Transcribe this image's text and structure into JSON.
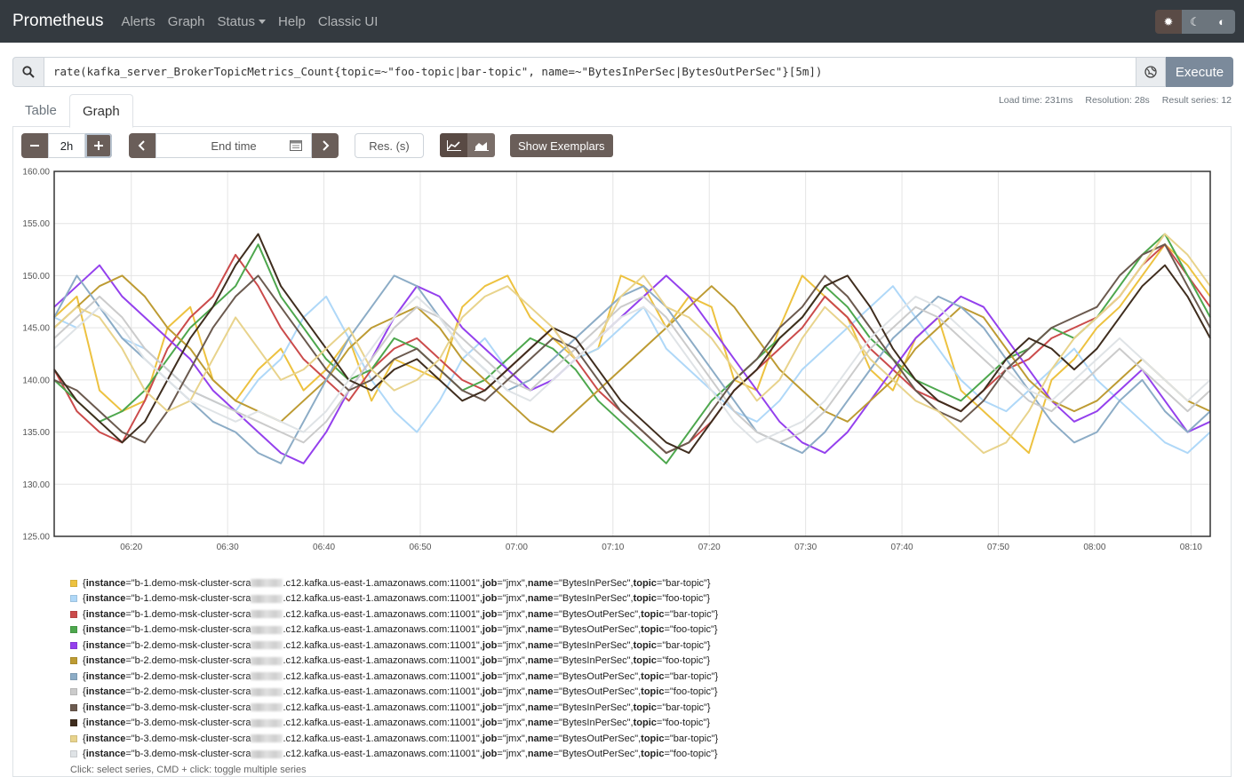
{
  "navbar": {
    "brand": "Prometheus",
    "links": [
      "Alerts",
      "Graph",
      "Status",
      "Help",
      "Classic UI"
    ]
  },
  "query": {
    "expression": "rate(kafka_server_BrokerTopicMetrics_Count{topic=~\"foo-topic|bar-topic\", name=~\"BytesInPerSec|BytesOutPerSec\"}[5m])",
    "execute_label": "Execute"
  },
  "stats": {
    "load_time": "Load time: 231ms",
    "resolution": "Resolution: 28s",
    "result_series": "Result series: 12"
  },
  "tabs": {
    "table": "Table",
    "graph": "Graph"
  },
  "controls": {
    "range": "2h",
    "end_time_placeholder": "End time",
    "res_placeholder": "Res. (s)",
    "show_exemplars": "Show Exemplars"
  },
  "chart_data": {
    "type": "line",
    "ylim": [
      125,
      160
    ],
    "y_ticks": [
      "125.00",
      "130.00",
      "135.00",
      "140.00",
      "145.00",
      "150.00",
      "155.00",
      "160.00"
    ],
    "x_ticks": [
      "06:20",
      "06:30",
      "06:40",
      "06:50",
      "07:00",
      "07:10",
      "07:20",
      "07:30",
      "07:40",
      "07:50",
      "08:00",
      "08:10"
    ],
    "x_range": [
      "06:12",
      "08:12"
    ],
    "series": [
      {
        "color": "#edc240",
        "values": [
          146,
          148,
          139,
          137,
          138,
          145,
          147,
          140,
          138,
          141,
          143,
          139,
          141,
          144,
          138,
          142,
          141,
          140,
          147,
          149,
          150,
          146,
          144,
          142,
          143,
          150,
          149,
          145,
          148,
          147,
          140,
          139,
          145,
          150,
          148,
          146,
          141,
          139,
          144,
          146,
          139,
          137,
          135,
          133,
          140,
          142,
          145,
          147,
          150,
          153,
          151,
          148
        ]
      },
      {
        "color": "#afd8f8",
        "values": [
          146,
          145,
          147,
          144,
          143,
          141,
          139,
          138,
          137,
          140,
          142,
          146,
          148,
          144,
          140,
          137,
          135,
          138,
          142,
          144,
          141,
          139,
          140,
          142,
          143,
          145,
          147,
          143,
          141,
          139,
          137,
          136,
          138,
          141,
          143,
          145,
          147,
          149,
          146,
          143,
          140,
          138,
          137,
          139,
          141,
          143,
          140,
          138,
          136,
          134,
          133,
          135
        ]
      },
      {
        "color": "#cb4b4b",
        "values": [
          141,
          137,
          135,
          134,
          138,
          143,
          146,
          148,
          152,
          149,
          145,
          142,
          140,
          138,
          141,
          143,
          144,
          142,
          140,
          139,
          141,
          143,
          145,
          142,
          139,
          137,
          135,
          133,
          134,
          136,
          139,
          141,
          143,
          145,
          148,
          146,
          143,
          141,
          139,
          138,
          137,
          139,
          141,
          142,
          144,
          145,
          146,
          148,
          151,
          153,
          150,
          147
        ]
      },
      {
        "color": "#4da74d",
        "values": [
          140,
          138,
          136,
          137,
          139,
          142,
          145,
          147,
          149,
          153,
          148,
          145,
          142,
          140,
          141,
          144,
          143,
          141,
          139,
          140,
          142,
          144,
          143,
          141,
          138,
          136,
          134,
          132,
          135,
          138,
          140,
          142,
          144,
          146,
          149,
          147,
          144,
          142,
          140,
          139,
          138,
          140,
          142,
          143,
          145,
          144,
          146,
          149,
          152,
          154,
          150,
          146
        ]
      },
      {
        "color": "#9440ed",
        "values": [
          147,
          149,
          151,
          148,
          146,
          144,
          142,
          139,
          137,
          135,
          133,
          132,
          135,
          139,
          142,
          146,
          149,
          148,
          145,
          143,
          141,
          139,
          140,
          142,
          144,
          146,
          148,
          150,
          148,
          145,
          142,
          139,
          136,
          134,
          133,
          135,
          138,
          141,
          144,
          146,
          148,
          147,
          144,
          141,
          138,
          136,
          137,
          139,
          141,
          138,
          135,
          136
        ]
      },
      {
        "color": "#bd9b33",
        "values": [
          145,
          147,
          149,
          150,
          148,
          145,
          143,
          140,
          138,
          137,
          136,
          138,
          140,
          143,
          145,
          146,
          147,
          145,
          142,
          140,
          138,
          136,
          135,
          137,
          139,
          141,
          143,
          145,
          147,
          149,
          147,
          144,
          141,
          139,
          137,
          136,
          138,
          140,
          143,
          145,
          147,
          146,
          143,
          140,
          138,
          137,
          138,
          140,
          142,
          140,
          138,
          137
        ]
      },
      {
        "color": "#8cacc6",
        "values": [
          146,
          150,
          147,
          144,
          142,
          140,
          138,
          136,
          135,
          133,
          132,
          136,
          140,
          144,
          147,
          150,
          149,
          146,
          143,
          141,
          139,
          140,
          142,
          144,
          146,
          148,
          149,
          147,
          144,
          141,
          138,
          135,
          134,
          133,
          135,
          138,
          141,
          144,
          146,
          148,
          147,
          145,
          142,
          139,
          136,
          134,
          135,
          138,
          140,
          137,
          135,
          137
        ]
      },
      {
        "color": "#cbcbcb",
        "values": [
          144,
          146,
          148,
          146,
          143,
          141,
          139,
          138,
          137,
          136,
          135,
          134,
          136,
          139,
          142,
          145,
          147,
          146,
          144,
          142,
          140,
          139,
          141,
          143,
          145,
          147,
          148,
          146,
          143,
          140,
          137,
          135,
          134,
          135,
          137,
          140,
          143,
          145,
          147,
          146,
          144,
          142,
          140,
          138,
          137,
          139,
          141,
          143,
          141,
          139,
          137,
          139
        ]
      },
      {
        "color": "#6b5a4f",
        "values": [
          140,
          139,
          137,
          135,
          134,
          137,
          141,
          145,
          148,
          150,
          147,
          144,
          141,
          139,
          140,
          142,
          143,
          141,
          139,
          138,
          140,
          142,
          144,
          143,
          140,
          137,
          135,
          133,
          134,
          137,
          140,
          142,
          145,
          147,
          150,
          148,
          145,
          142,
          139,
          137,
          136,
          138,
          141,
          143,
          145,
          146,
          147,
          150,
          152,
          153,
          149,
          145
        ]
      },
      {
        "color": "#3f2d1e",
        "values": [
          141,
          138,
          136,
          134,
          136,
          140,
          144,
          147,
          151,
          154,
          149,
          146,
          143,
          140,
          139,
          141,
          142,
          140,
          138,
          139,
          141,
          143,
          145,
          144,
          141,
          138,
          136,
          134,
          133,
          136,
          139,
          141,
          144,
          146,
          149,
          150,
          147,
          143,
          140,
          138,
          137,
          139,
          142,
          144,
          143,
          141,
          143,
          146,
          149,
          151,
          148,
          144
        ]
      },
      {
        "color": "#e8d38c",
        "values": [
          145,
          147,
          146,
          143,
          139,
          137,
          138,
          142,
          146,
          143,
          140,
          141,
          143,
          145,
          141,
          139,
          140,
          142,
          146,
          148,
          149,
          147,
          145,
          142,
          144,
          148,
          150,
          147,
          146,
          144,
          141,
          138,
          140,
          144,
          147,
          145,
          142,
          140,
          138,
          137,
          135,
          133,
          134,
          137,
          141,
          144,
          146,
          148,
          151,
          154,
          152,
          149
        ]
      },
      {
        "color": "#dfe3e6",
        "values": [
          143,
          145,
          147,
          145,
          142,
          140,
          138,
          137,
          136,
          137,
          136,
          135,
          137,
          140,
          143,
          146,
          148,
          146,
          143,
          141,
          139,
          138,
          140,
          142,
          144,
          146,
          147,
          145,
          142,
          139,
          136,
          134,
          135,
          136,
          138,
          141,
          144,
          146,
          148,
          147,
          145,
          143,
          141,
          139,
          138,
          140,
          142,
          144,
          142,
          140,
          138,
          140
        ]
      }
    ]
  },
  "legend": {
    "items": [
      {
        "color": "#edc240",
        "instance_pre": "b-1.demo-msk-cluster-scra",
        "instance_post": ".c12.kafka.us-east-1.amazonaws.com:11001",
        "job": "jmx",
        "name": "BytesInPerSec",
        "topic": "bar-topic"
      },
      {
        "color": "#afd8f8",
        "instance_pre": "b-1.demo-msk-cluster-scra",
        "instance_post": ".c12.kafka.us-east-1.amazonaws.com:11001",
        "job": "jmx",
        "name": "BytesInPerSec",
        "topic": "foo-topic"
      },
      {
        "color": "#cb4b4b",
        "instance_pre": "b-1.demo-msk-cluster-scra",
        "instance_post": ".c12.kafka.us-east-1.amazonaws.com:11001",
        "job": "jmx",
        "name": "BytesOutPerSec",
        "topic": "bar-topic"
      },
      {
        "color": "#4da74d",
        "instance_pre": "b-1.demo-msk-cluster-scra",
        "instance_post": ".c12.kafka.us-east-1.amazonaws.com:11001",
        "job": "jmx",
        "name": "BytesOutPerSec",
        "topic": "foo-topic"
      },
      {
        "color": "#9440ed",
        "instance_pre": "b-2.demo-msk-cluster-scra",
        "instance_post": ".c12.kafka.us-east-1.amazonaws.com:11001",
        "job": "jmx",
        "name": "BytesInPerSec",
        "topic": "bar-topic"
      },
      {
        "color": "#bd9b33",
        "instance_pre": "b-2.demo-msk-cluster-scra",
        "instance_post": ".c12.kafka.us-east-1.amazonaws.com:11001",
        "job": "jmx",
        "name": "BytesInPerSec",
        "topic": "foo-topic"
      },
      {
        "color": "#8cacc6",
        "instance_pre": "b-2.demo-msk-cluster-scra",
        "instance_post": ".c12.kafka.us-east-1.amazonaws.com:11001",
        "job": "jmx",
        "name": "BytesOutPerSec",
        "topic": "bar-topic"
      },
      {
        "color": "#cbcbcb",
        "instance_pre": "b-2.demo-msk-cluster-scra",
        "instance_post": ".c12.kafka.us-east-1.amazonaws.com:11001",
        "job": "jmx",
        "name": "BytesOutPerSec",
        "topic": "foo-topic"
      },
      {
        "color": "#6b5a4f",
        "instance_pre": "b-3.demo-msk-cluster-scra",
        "instance_post": ".c12.kafka.us-east-1.amazonaws.com:11001",
        "job": "jmx",
        "name": "BytesInPerSec",
        "topic": "bar-topic"
      },
      {
        "color": "#3f2d1e",
        "instance_pre": "b-3.demo-msk-cluster-scra",
        "instance_post": ".c12.kafka.us-east-1.amazonaws.com:11001",
        "job": "jmx",
        "name": "BytesInPerSec",
        "topic": "foo-topic"
      },
      {
        "color": "#e8d38c",
        "instance_pre": "b-3.demo-msk-cluster-scra",
        "instance_post": ".c12.kafka.us-east-1.amazonaws.com:11001",
        "job": "jmx",
        "name": "BytesOutPerSec",
        "topic": "bar-topic"
      },
      {
        "color": "#dfe3e6",
        "instance_pre": "b-3.demo-msk-cluster-scra",
        "instance_post": ".c12.kafka.us-east-1.amazonaws.com:11001",
        "job": "jmx",
        "name": "BytesOutPerSec",
        "topic": "foo-topic"
      }
    ],
    "hint": "Click: select series, CMD + click: toggle multiple series"
  }
}
